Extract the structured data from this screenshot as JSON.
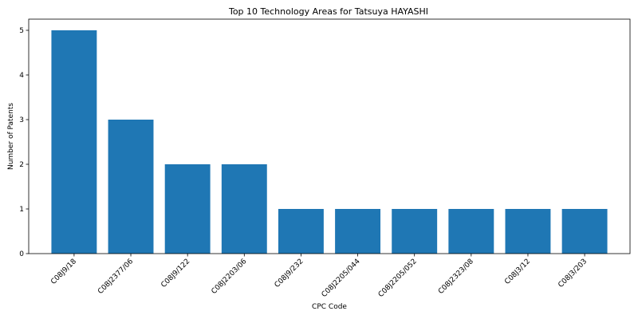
{
  "chart_data": {
    "type": "bar",
    "title": "Top 10 Technology Areas for Tatsuya HAYASHI",
    "xlabel": "CPC Code",
    "ylabel": "Number of Patents",
    "categories": [
      "C08J9/18",
      "C08J2377/06",
      "C08J9/122",
      "C08J2203/06",
      "C08J9/232",
      "C08J2205/044",
      "C08J2205/052",
      "C08J2323/08",
      "C08J3/12",
      "C08J3/203"
    ],
    "values": [
      5,
      3,
      2,
      2,
      1,
      1,
      1,
      1,
      1,
      1
    ],
    "ylim": [
      0,
      5.25
    ],
    "yticks": [
      0,
      1,
      2,
      3,
      4,
      5
    ],
    "grid": false,
    "bar_color": "#1f77b4"
  }
}
